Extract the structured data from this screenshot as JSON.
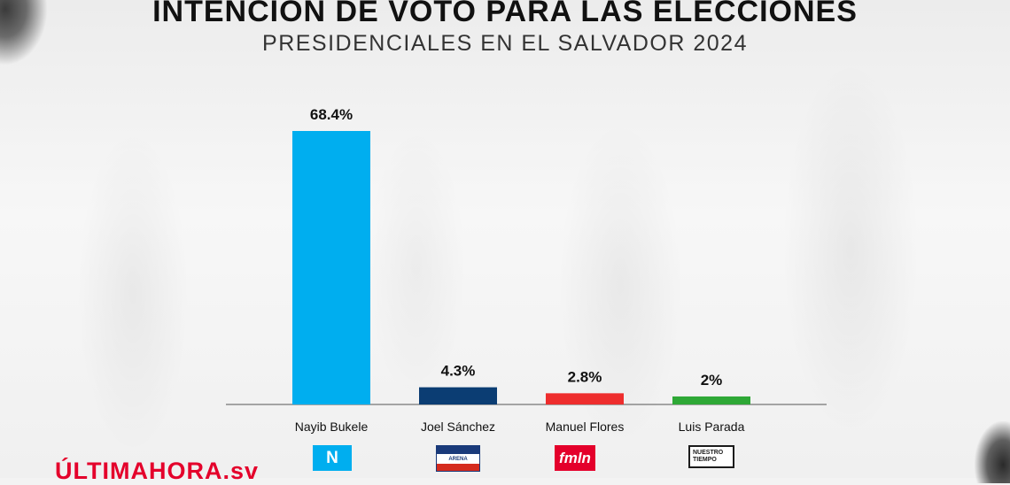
{
  "header": {
    "title": "INTENCIÓN DE VOTO PARA LAS ELECCIONES",
    "subtitle": "PRESIDENCIALES EN EL SALVADOR 2024"
  },
  "brand": {
    "main": "ÚLTIMAHORA",
    "suffix": ".sv"
  },
  "logos": {
    "nuevas_ideas": "N",
    "arena": "ARENA",
    "fmln": "fmln",
    "nuestro_tiempo": [
      "NUESTRO",
      "TIEMPO"
    ]
  },
  "chart_data": {
    "type": "bar",
    "title": "INTENCIÓN DE VOTO PARA LAS ELECCIONES",
    "subtitle": "PRESIDENCIALES EN EL SALVADOR 2024",
    "categories": [
      "Nayib Bukele",
      "Joel Sánchez",
      "Manuel Flores",
      "Luis Parada"
    ],
    "values": [
      68.4,
      4.3,
      2.8,
      2
    ],
    "data_labels": [
      "68.4%",
      "4.3%",
      "2.8%",
      "2%"
    ],
    "colors": [
      "#00aeef",
      "#0b3d73",
      "#ee2d2d",
      "#2ea836"
    ],
    "unit": "%",
    "ylim": [
      0,
      68.4
    ],
    "grid": false,
    "legend": "none"
  }
}
